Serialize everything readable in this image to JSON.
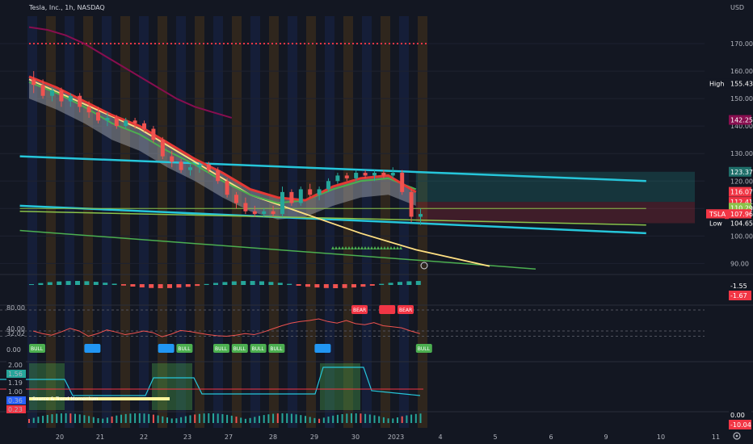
{
  "header": {
    "title": "Tesla, Inc., 1h, NASDAQ",
    "currency": "USD"
  },
  "chart_data": {
    "type": "line",
    "main_pane": {
      "y_ticks": [
        170.0,
        160.0,
        150.0,
        140.0,
        130.0,
        120.0,
        110.0,
        100.0,
        90.0
      ],
      "ylim": [
        86,
        180
      ],
      "price_tags": [
        {
          "label": "High",
          "value": "155.43",
          "price": 155.43,
          "color": "#131722",
          "text_color": "#d1d4dc"
        },
        {
          "label": "",
          "value": "142.25",
          "price": 142.25,
          "color": "#880e4f",
          "text_color": "#ffffff"
        },
        {
          "label": "",
          "value": "123.37",
          "price": 123.37,
          "color": "#1f6f6a",
          "text_color": "#ffffff"
        },
        {
          "label": "",
          "value": "116.07",
          "price": 116.07,
          "color": "#f23645",
          "text_color": "#ffffff"
        },
        {
          "label": "",
          "value": "112.41",
          "price": 112.41,
          "color": "#f23645",
          "text_color": "#ffffff"
        },
        {
          "label": "",
          "value": "110.29",
          "price": 110.29,
          "color": "#8bc34a",
          "text_color": "#ffffff"
        },
        {
          "label": "TSLA",
          "value": "107.96",
          "price": 107.96,
          "color": "#f23645",
          "text_color": "#ffffff"
        },
        {
          "label": "Low",
          "value": "104.65",
          "price": 104.65,
          "color": "#131722",
          "text_color": "#d1d4dc"
        }
      ],
      "candles": [
        [
          157,
          160,
          152,
          155
        ],
        [
          155,
          157,
          150,
          151
        ],
        [
          151,
          154,
          149,
          153
        ],
        [
          153,
          154,
          147,
          149
        ],
        [
          149,
          152,
          147,
          151
        ],
        [
          151,
          152,
          145,
          147
        ],
        [
          147,
          149,
          143,
          145
        ],
        [
          145,
          147,
          141,
          142
        ],
        [
          142,
          145,
          140,
          143
        ],
        [
          143,
          144,
          139,
          140
        ],
        [
          140,
          143,
          139,
          142
        ],
        [
          142,
          143,
          139,
          141
        ],
        [
          141,
          142,
          138,
          139
        ],
        [
          139,
          140,
          134,
          135
        ],
        [
          135,
          136,
          128,
          129
        ],
        [
          129,
          131,
          125,
          127
        ],
        [
          127,
          128,
          123,
          124
        ],
        [
          124,
          126,
          122,
          125
        ],
        [
          125,
          127,
          123,
          126
        ],
        [
          126,
          127,
          123,
          124
        ],
        [
          124,
          125,
          119,
          120
        ],
        [
          120,
          121,
          114,
          115
        ],
        [
          115,
          116,
          110,
          112
        ],
        [
          112,
          114,
          108,
          109
        ],
        [
          109,
          111,
          107,
          108
        ],
        [
          108,
          110,
          107,
          109
        ],
        [
          109,
          111,
          107,
          108
        ],
        [
          108,
          118,
          107,
          116
        ],
        [
          116,
          117,
          111,
          112
        ],
        [
          112,
          118,
          111,
          117
        ],
        [
          117,
          119,
          114,
          115
        ],
        [
          115,
          118,
          113,
          117
        ],
        [
          117,
          121,
          116,
          120
        ],
        [
          120,
          123,
          119,
          122
        ],
        [
          122,
          123,
          120,
          121
        ],
        [
          121,
          124,
          120,
          123
        ],
        [
          123,
          124,
          121,
          122
        ],
        [
          122,
          124,
          120,
          123
        ],
        [
          123,
          124,
          121,
          122
        ],
        [
          122,
          125,
          121,
          123
        ],
        [
          123,
          124,
          115,
          116
        ],
        [
          116,
          117,
          105,
          107
        ],
        [
          107,
          110,
          104,
          108
        ]
      ],
      "sma_long": [
        [
          0,
          176
        ],
        [
          2,
          175
        ],
        [
          4,
          173
        ],
        [
          6,
          170
        ],
        [
          8,
          166
        ],
        [
          10,
          162
        ],
        [
          12,
          158
        ],
        [
          14,
          154
        ],
        [
          16,
          150
        ],
        [
          18,
          147
        ],
        [
          20,
          145
        ],
        [
          22,
          143
        ]
      ],
      "ema_fast": [
        [
          0,
          158
        ],
        [
          3,
          154
        ],
        [
          6,
          149
        ],
        [
          9,
          144
        ],
        [
          12,
          140
        ],
        [
          15,
          134
        ],
        [
          18,
          128
        ],
        [
          21,
          123
        ],
        [
          24,
          117
        ],
        [
          27,
          114
        ],
        [
          30,
          113
        ],
        [
          33,
          118
        ],
        [
          36,
          121
        ],
        [
          39,
          122
        ],
        [
          42,
          116
        ]
      ],
      "ema_slow": [
        [
          0,
          156
        ],
        [
          3,
          152
        ],
        [
          6,
          147
        ],
        [
          9,
          141
        ],
        [
          12,
          137
        ],
        [
          15,
          131
        ],
        [
          18,
          126
        ],
        [
          21,
          120
        ],
        [
          24,
          115
        ],
        [
          27,
          112
        ],
        [
          30,
          113
        ],
        [
          33,
          117
        ],
        [
          36,
          120
        ],
        [
          39,
          121
        ],
        [
          42,
          117
        ]
      ],
      "trend_yellow": [
        [
          0,
          157
        ],
        [
          6,
          148
        ],
        [
          12,
          139
        ],
        [
          18,
          127
        ],
        [
          24,
          115
        ],
        [
          30,
          108
        ],
        [
          36,
          101
        ],
        [
          42,
          95
        ],
        [
          50,
          89
        ]
      ],
      "channel_top": [
        [
          -1,
          129
        ],
        [
          67,
          120
        ]
      ],
      "channel_bottom": [
        [
          -1,
          111
        ],
        [
          67,
          101
        ]
      ],
      "green_line_1": [
        [
          -1,
          109
        ],
        [
          67,
          104
        ]
      ],
      "green_line_2": [
        [
          -1,
          102
        ],
        [
          55,
          88
        ]
      ],
      "green_h": [
        [
          -1,
          110
        ],
        [
          67,
          110
        ]
      ],
      "red_dotted": 170.0,
      "zone_top": [
        123.37,
        112.41
      ],
      "zone_bottom": [
        112.41,
        104.65
      ]
    },
    "macd_pane": {
      "values": [
        "-1.55",
        "-1.67"
      ]
    },
    "rsi_pane": {
      "y_ticks": [
        "80.00",
        "40.00",
        "32.02",
        "0.00"
      ],
      "signals": [
        {
          "label": "BULL",
          "bar": 0,
          "color": "#4caf50"
        },
        {
          "label": "",
          "bar": 6,
          "color": "#2196f3"
        },
        {
          "label": "",
          "bar": 14,
          "color": "#2196f3"
        },
        {
          "label": "BULL",
          "bar": 16,
          "color": "#4caf50"
        },
        {
          "label": "BULL",
          "bar": 20,
          "color": "#4caf50"
        },
        {
          "label": "BULL",
          "bar": 22,
          "color": "#4caf50"
        },
        {
          "label": "BULL",
          "bar": 24,
          "color": "#4caf50"
        },
        {
          "label": "BULL",
          "bar": 26,
          "color": "#4caf50"
        },
        {
          "label": "",
          "bar": 31,
          "color": "#2196f3"
        },
        {
          "label": "BEAR",
          "bar": 35,
          "color": "#f23645"
        },
        {
          "label": "",
          "bar": 38,
          "color": "#f23645"
        },
        {
          "label": "BEAR",
          "bar": 40,
          "color": "#f23645"
        },
        {
          "label": "BULL",
          "bar": 42,
          "color": "#4caf50"
        }
      ]
    },
    "osc_pane": {
      "y_ticks": [
        "2.00",
        "1.56",
        "1.19",
        "1.00",
        "0.36",
        "0.23"
      ],
      "caption": "Source & Trend Momentum"
    },
    "hist_pane": {
      "values": [
        "0.00",
        "-10.04"
      ]
    },
    "x_ticks": [
      "20",
      "21",
      "22",
      "23",
      "27",
      "28",
      "29",
      "30",
      "2023",
      "4",
      "5",
      "6",
      "9",
      "10",
      "11"
    ]
  }
}
